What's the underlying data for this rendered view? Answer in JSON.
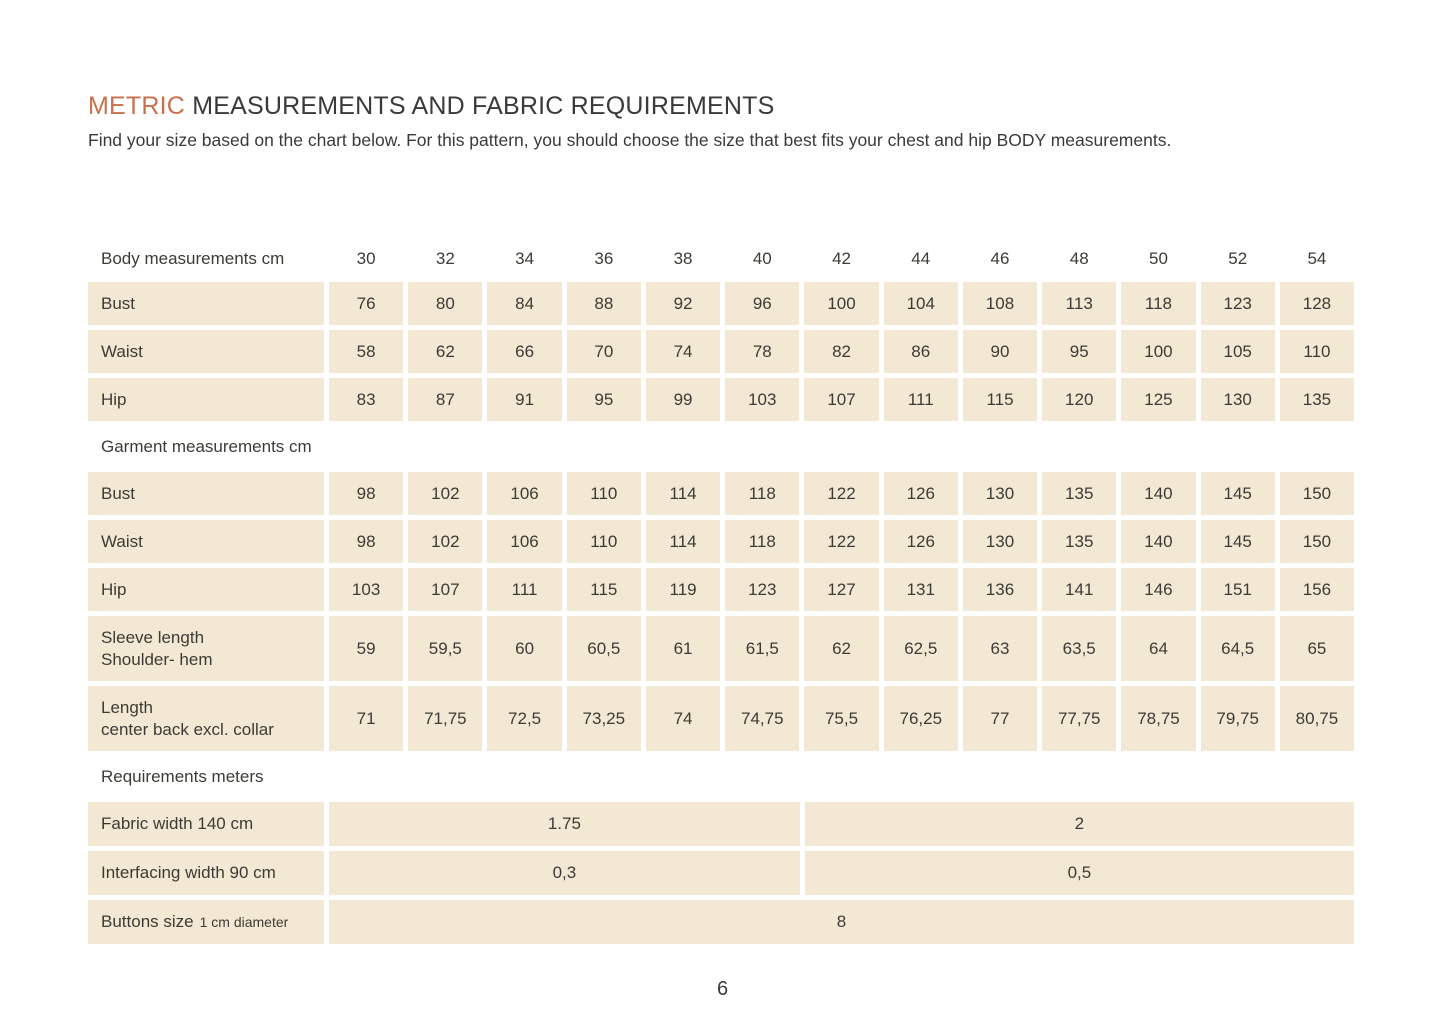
{
  "header": {
    "title_highlight": "METRIC",
    "title_rest": "MEASUREMENTS AND FABRIC REQUIREMENTS",
    "subtitle": "Find your size based on the chart below. For this pattern, you should choose the size that best fits your chest and hip BODY measurements."
  },
  "footer": {
    "page_number": "6"
  },
  "colors": {
    "accent": "#C9704D",
    "cell_bg": "#F2E8D3",
    "text": "#3D3B35"
  },
  "chart_data": {
    "type": "table",
    "title": "Metric measurements and fabric requirements",
    "sizes": [
      "30",
      "32",
      "34",
      "36",
      "38",
      "40",
      "42",
      "44",
      "46",
      "48",
      "50",
      "52",
      "54"
    ],
    "sections": [
      {
        "header": "Body measurements cm",
        "show_sizes": true,
        "rows": [
          {
            "label": [
              "Bust"
            ],
            "values": [
              "76",
              "80",
              "84",
              "88",
              "92",
              "96",
              "100",
              "104",
              "108",
              "113",
              "118",
              "123",
              "128"
            ]
          },
          {
            "label": [
              "Waist"
            ],
            "values": [
              "58",
              "62",
              "66",
              "70",
              "74",
              "78",
              "82",
              "86",
              "90",
              "95",
              "100",
              "105",
              "110"
            ]
          },
          {
            "label": [
              "Hip"
            ],
            "values": [
              "83",
              "87",
              "91",
              "95",
              "99",
              "103",
              "107",
              "111",
              "115",
              "120",
              "125",
              "130",
              "135"
            ]
          }
        ]
      },
      {
        "header": "Garment measurements cm",
        "show_sizes": false,
        "rows": [
          {
            "label": [
              "Bust"
            ],
            "values": [
              "98",
              "102",
              "106",
              "110",
              "114",
              "118",
              "122",
              "126",
              "130",
              "135",
              "140",
              "145",
              "150"
            ]
          },
          {
            "label": [
              "Waist"
            ],
            "values": [
              "98",
              "102",
              "106",
              "110",
              "114",
              "118",
              "122",
              "126",
              "130",
              "135",
              "140",
              "145",
              "150"
            ]
          },
          {
            "label": [
              "Hip"
            ],
            "values": [
              "103",
              "107",
              "111",
              "115",
              "119",
              "123",
              "127",
              "131",
              "136",
              "141",
              "146",
              "151",
              "156"
            ]
          },
          {
            "label": [
              "Sleeve length",
              "Shoulder- hem"
            ],
            "values": [
              "59",
              "59,5",
              "60",
              "60,5",
              "61",
              "61,5",
              "62",
              "62,5",
              "63",
              "63,5",
              "64",
              "64,5",
              "65"
            ]
          },
          {
            "label": [
              "Length",
              "center back excl. collar"
            ],
            "values": [
              "71",
              "71,75",
              "72,5",
              "73,25",
              "74",
              "74,75",
              "75,5",
              "76,25",
              "77",
              "77,75",
              "78,75",
              "79,75",
              "80,75"
            ]
          }
        ]
      },
      {
        "header": "Requirements meters",
        "show_sizes": false,
        "rows": [
          {
            "label": [
              "Fabric width 140 cm"
            ],
            "spans": [
              {
                "value": "1.75",
                "cols": 6
              },
              {
                "value": "2",
                "cols": 7
              }
            ]
          },
          {
            "label": [
              "Interfacing width 90 cm"
            ],
            "spans": [
              {
                "value": "0,3",
                "cols": 6
              },
              {
                "value": "0,5",
                "cols": 7
              }
            ]
          },
          {
            "label": [
              "Buttons size"
            ],
            "label_note": "1 cm diameter",
            "spans": [
              {
                "value": "8",
                "cols": 13
              }
            ]
          }
        ]
      }
    ]
  }
}
